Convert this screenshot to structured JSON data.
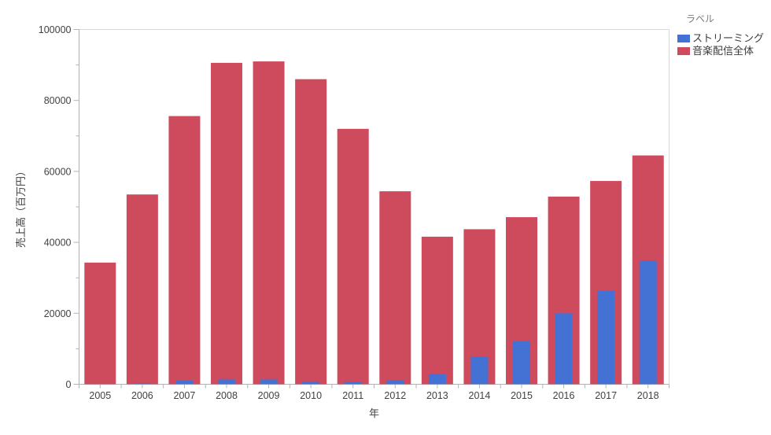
{
  "chart_data": {
    "type": "bar",
    "mode": "overlay",
    "title": "",
    "xlabel": "年",
    "ylabel": "売上高（百万円）",
    "ylim": [
      0,
      100000
    ],
    "y_major_step": 20000,
    "y_minor_step": 10000,
    "grid": false,
    "legend_position": "top-right",
    "legend_title": "ラベル",
    "categories": [
      "2005",
      "2006",
      "2007",
      "2008",
      "2009",
      "2010",
      "2011",
      "2012",
      "2013",
      "2014",
      "2015",
      "2016",
      "2017",
      "2018"
    ],
    "series": [
      {
        "key": "streaming",
        "name": "ストリーミング",
        "color": "#4472d4",
        "values": [
          0,
          250,
          1000,
          1350,
          1350,
          800,
          650,
          1100,
          2900,
          7800,
          12200,
          20000,
          26400,
          34900
        ]
      },
      {
        "key": "total",
        "name": "音楽配信全体",
        "color": "#ce4a5d",
        "values": [
          34300,
          53500,
          75600,
          90600,
          91000,
          86000,
          72000,
          54400,
          41600,
          43700,
          47100,
          52900,
          57300,
          64500
        ]
      }
    ]
  },
  "colors": {
    "frame": "#d6d6d6",
    "axis": "#b2b2b2",
    "tick": "#b2b2b2",
    "label": "#414141",
    "legend_title": "#7a7a7a",
    "background": "#ffffff"
  }
}
